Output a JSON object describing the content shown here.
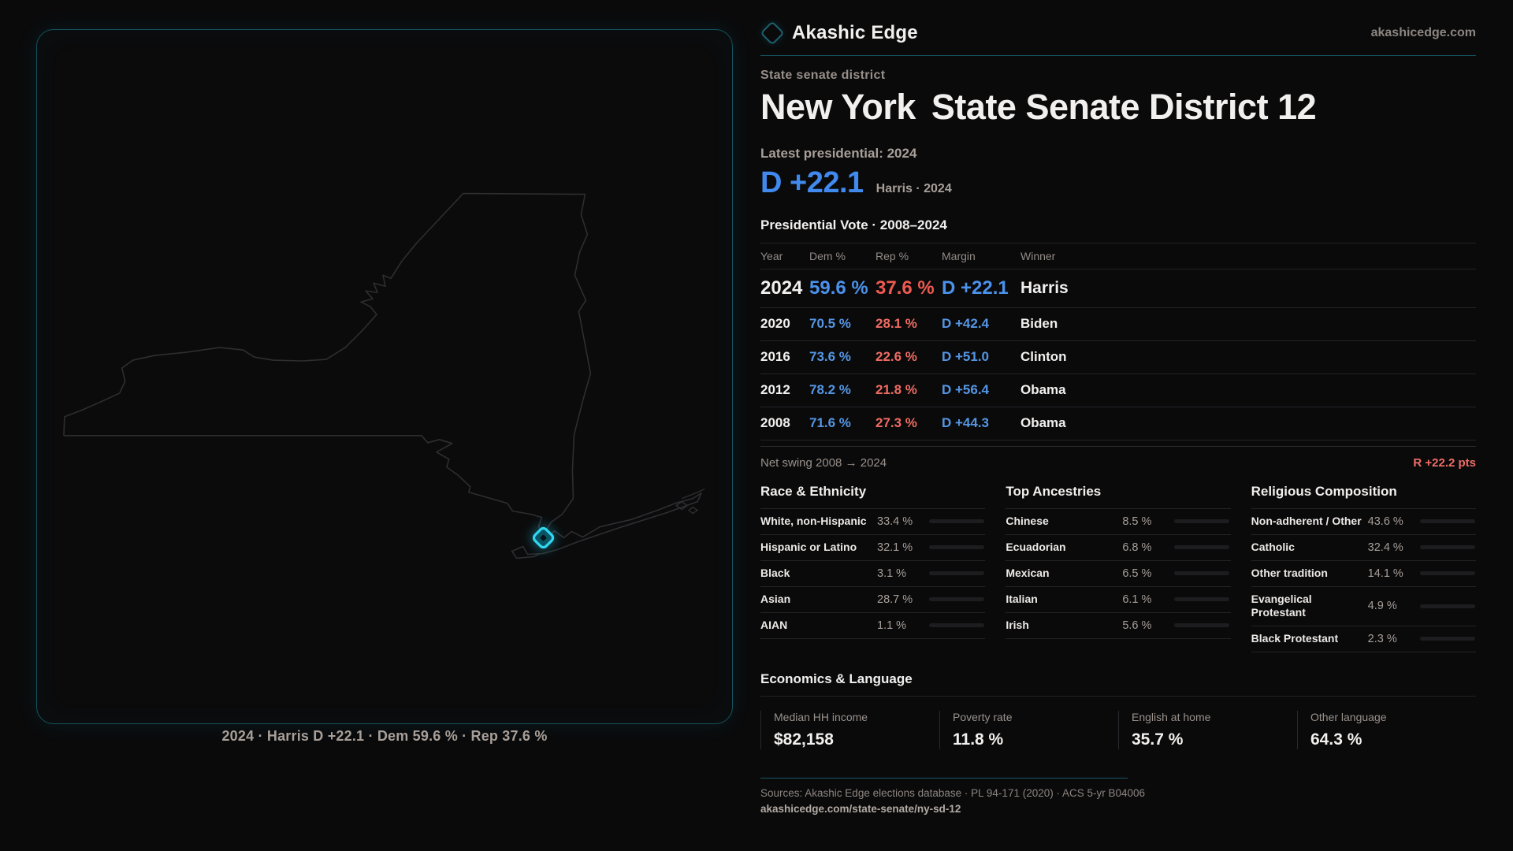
{
  "brand": {
    "name": "Akashic Edge",
    "site": "akashicedge.com"
  },
  "page": {
    "eyebrow": "State senate district",
    "title_region": "New York",
    "title_seat": "State Senate District 12",
    "kicker": "Latest presidential: 2024",
    "headline_margin": "D +22.1",
    "headline_sub": "Harris · 2024",
    "table_title": "Presidential Vote · 2008–2024"
  },
  "map": {
    "caption": "2024 · Harris D +22.1 · Dem 59.6 % · Rep 37.6 %"
  },
  "vote_table": {
    "columns": [
      "Year",
      "Dem %",
      "Rep %",
      "Margin",
      "Winner"
    ],
    "rows": [
      {
        "year": "2024",
        "dem": "59.6 %",
        "rep": "37.6 %",
        "margin": "D +22.1",
        "winner": "Harris",
        "featured": true
      },
      {
        "year": "2020",
        "dem": "70.5 %",
        "rep": "28.1 %",
        "margin": "D +42.4",
        "winner": "Biden"
      },
      {
        "year": "2016",
        "dem": "73.6 %",
        "rep": "22.6 %",
        "margin": "D +51.0",
        "winner": "Clinton"
      },
      {
        "year": "2012",
        "dem": "78.2 %",
        "rep": "21.8 %",
        "margin": "D +56.4",
        "winner": "Obama"
      },
      {
        "year": "2008",
        "dem": "71.6 %",
        "rep": "27.3 %",
        "margin": "D +44.3",
        "winner": "Obama"
      }
    ]
  },
  "net_swing": {
    "label": "Net swing 2008 → 2024",
    "value": "R +22.2 pts"
  },
  "demographics": [
    {
      "title": "Race & Ethnicity",
      "rows": [
        {
          "label": "White, non-Hispanic",
          "value": "33.4 %",
          "pct": 33.4,
          "color": "#8ea3c0"
        },
        {
          "label": "Hispanic or Latino",
          "value": "32.1 %",
          "pct": 32.1,
          "color": "#dc9a2e"
        },
        {
          "label": "Black",
          "value": "3.1 %",
          "pct": 3.1,
          "color": "#7e5ce0"
        },
        {
          "label": "Asian",
          "value": "28.7 %",
          "pct": 28.7,
          "color": "#2ec492"
        },
        {
          "label": "AIAN",
          "value": "1.1 %",
          "pct": 1.1,
          "color": "#b35a1f"
        }
      ]
    },
    {
      "title": "Top Ancestries",
      "rows": [
        {
          "label": "Chinese",
          "value": "8.5 %",
          "pct": 8.5,
          "color": "#2ec492"
        },
        {
          "label": "Ecuadorian",
          "value": "6.8 %",
          "pct": 6.8,
          "color": "#dc9a2e"
        },
        {
          "label": "Mexican",
          "value": "6.5 %",
          "pct": 6.5,
          "color": "#dc9a2e"
        },
        {
          "label": "Italian",
          "value": "6.1 %",
          "pct": 6.1,
          "color": "#8ea3c0"
        },
        {
          "label": "Irish",
          "value": "5.6 %",
          "pct": 5.6,
          "color": "#8ea3c0"
        }
      ]
    },
    {
      "title": "Religious Composition",
      "rows": [
        {
          "label": "Non-adherent / Other",
          "value": "43.6 %",
          "pct": 43.6,
          "color": "#8ea3c0"
        },
        {
          "label": "Catholic",
          "value": "32.4 %",
          "pct": 32.4,
          "color": "#d3b12e"
        },
        {
          "label": "Other tradition",
          "value": "14.1 %",
          "pct": 14.1,
          "color": "#8ea3c0"
        },
        {
          "label": "Evangelical Protestant",
          "value": "4.9 %",
          "pct": 4.9,
          "color": "#e05555"
        },
        {
          "label": "Black Protestant",
          "value": "2.3 %",
          "pct": 2.3,
          "color": "#7e5ce0"
        }
      ]
    }
  ],
  "economics": {
    "title": "Economics & Language",
    "stats": [
      {
        "label": "Median HH income",
        "value": "$82,158"
      },
      {
        "label": "Poverty rate",
        "value": "11.8 %"
      },
      {
        "label": "English at home",
        "value": "35.7 %"
      },
      {
        "label": "Other language",
        "value": "64.3 %"
      }
    ]
  },
  "footer": {
    "sources": "Sources: Akashic Edge elections database · PL 94-171 (2020) · ACS 5-yr B04006",
    "url": "akashicedge.com/state-senate/ny-sd-12"
  }
}
